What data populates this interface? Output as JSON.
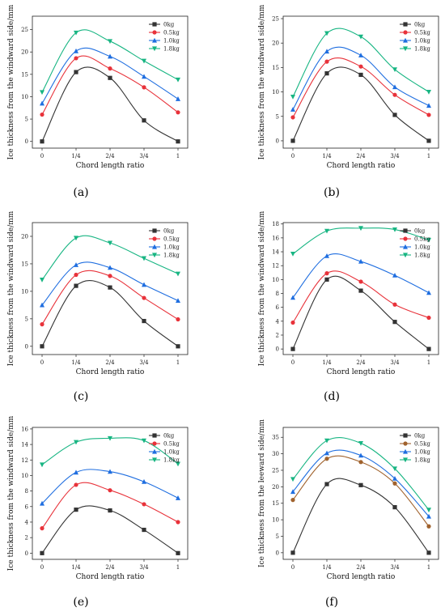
{
  "x_categories": [
    "0",
    "1/4",
    "2/4",
    "3/4",
    "1"
  ],
  "legend_labels": [
    "0kg",
    "0.5kg",
    "1.0kg",
    "1.8kg"
  ],
  "colors": {
    "0kg": "#333333",
    "0.5kg": "#e8323a",
    "1.0kg": "#1f6ee0",
    "1.8kg": "#17b582",
    "0.5kg_panel_f": "#a0622d"
  },
  "chart_data": [
    {
      "type": "line",
      "caption": "(a)",
      "categories": [
        "0",
        "1/4",
        "2/4",
        "3/4",
        "1"
      ],
      "xlabel": "Chord length ratio",
      "ylabel": "Ice thickness from the windward side/mm",
      "ylim": [
        -1.5,
        28
      ],
      "yticks": [
        0,
        5,
        10,
        15,
        20,
        25
      ],
      "series": [
        {
          "name": "0kg",
          "values": [
            0,
            15.5,
            14.2,
            4.7,
            0
          ],
          "marker": "square",
          "color": "#333333"
        },
        {
          "name": "0.5kg",
          "values": [
            6,
            18.6,
            16.3,
            12.1,
            6.5
          ],
          "marker": "circle",
          "color": "#e8323a"
        },
        {
          "name": "1.0kg",
          "values": [
            8.5,
            20.2,
            19.0,
            14.5,
            9.5
          ],
          "marker": "triangle-up",
          "color": "#1f6ee0"
        },
        {
          "name": "1.8kg",
          "values": [
            11,
            24.3,
            22.4,
            18.0,
            13.8
          ],
          "marker": "triangle-down",
          "color": "#17b582"
        }
      ]
    },
    {
      "type": "line",
      "caption": "(b)",
      "categories": [
        "0",
        "1/4",
        "2/4",
        "3/4",
        "1"
      ],
      "xlabel": "Chord length ratio",
      "ylabel": "Ice thickness from the windward side/mm",
      "ylim": [
        -1.5,
        25.5
      ],
      "yticks": [
        0,
        5,
        10,
        15,
        20,
        25
      ],
      "series": [
        {
          "name": "0kg",
          "values": [
            0,
            13.8,
            13.5,
            5.3,
            0
          ],
          "marker": "square",
          "color": "#333333"
        },
        {
          "name": "0.5kg",
          "values": [
            4.8,
            16.2,
            15.2,
            9.4,
            5.3
          ],
          "marker": "circle",
          "color": "#e8323a"
        },
        {
          "name": "1.0kg",
          "values": [
            6.4,
            18.3,
            17.5,
            11.0,
            7.2
          ],
          "marker": "triangle-up",
          "color": "#1f6ee0"
        },
        {
          "name": "1.8kg",
          "values": [
            9.0,
            22.0,
            21.3,
            14.6,
            10.0
          ],
          "marker": "triangle-down",
          "color": "#17b582"
        }
      ]
    },
    {
      "type": "line",
      "caption": "(c)",
      "categories": [
        "0",
        "1/4",
        "2/4",
        "3/4",
        "1"
      ],
      "xlabel": "Chord length ratio",
      "ylabel": "Ice thickness from the windward side/mm",
      "ylim": [
        -1.5,
        22.5
      ],
      "yticks": [
        0,
        5,
        10,
        15,
        20
      ],
      "series": [
        {
          "name": "0kg",
          "values": [
            0,
            11.0,
            10.7,
            4.6,
            0
          ],
          "marker": "square",
          "color": "#333333"
        },
        {
          "name": "0.5kg",
          "values": [
            4.0,
            13.0,
            12.8,
            8.8,
            4.9
          ],
          "marker": "circle",
          "color": "#e8323a"
        },
        {
          "name": "1.0kg",
          "values": [
            7.5,
            14.8,
            14.3,
            11.2,
            8.3
          ],
          "marker": "triangle-up",
          "color": "#1f6ee0"
        },
        {
          "name": "1.8kg",
          "values": [
            12.1,
            19.7,
            18.8,
            16.0,
            13.2
          ],
          "marker": "triangle-down",
          "color": "#17b582"
        }
      ]
    },
    {
      "type": "line",
      "caption": "(d)",
      "categories": [
        "0",
        "1/4",
        "2/4",
        "3/4",
        "1"
      ],
      "xlabel": "Chord length ratio",
      "ylabel": "Ice thickness from the windward side/mm",
      "ylim": [
        -0.8,
        18.2
      ],
      "yticks": [
        0,
        2,
        4,
        6,
        8,
        10,
        12,
        14,
        16,
        18
      ],
      "series": [
        {
          "name": "0kg",
          "values": [
            0,
            10.0,
            8.4,
            3.9,
            0
          ],
          "marker": "square",
          "color": "#333333"
        },
        {
          "name": "0.5kg",
          "values": [
            3.8,
            10.9,
            9.7,
            6.4,
            4.5
          ],
          "marker": "circle",
          "color": "#e8323a"
        },
        {
          "name": "1.0kg",
          "values": [
            7.4,
            13.4,
            12.6,
            10.6,
            8.1
          ],
          "marker": "triangle-up",
          "color": "#1f6ee0"
        },
        {
          "name": "1.8kg",
          "values": [
            13.7,
            17.0,
            17.4,
            17.2,
            15.7
          ],
          "marker": "triangle-down",
          "color": "#17b582"
        }
      ]
    },
    {
      "type": "line",
      "caption": "(e)",
      "categories": [
        "0",
        "1/4",
        "2/4",
        "3/4",
        "1"
      ],
      "xlabel": "Chord length ratio",
      "ylabel": "Ice thickness from the windward side/mm",
      "ylim": [
        -0.8,
        16.2
      ],
      "yticks": [
        0,
        2,
        4,
        6,
        8,
        10,
        12,
        14,
        16
      ],
      "series": [
        {
          "name": "0kg",
          "values": [
            0,
            5.6,
            5.5,
            3.0,
            0
          ],
          "marker": "square",
          "color": "#333333"
        },
        {
          "name": "0.5kg",
          "values": [
            3.2,
            8.8,
            8.1,
            6.3,
            4.0
          ],
          "marker": "circle",
          "color": "#e8323a"
        },
        {
          "name": "1.0kg",
          "values": [
            6.4,
            10.4,
            10.5,
            9.2,
            7.1
          ],
          "marker": "triangle-up",
          "color": "#1f6ee0"
        },
        {
          "name": "1.8kg",
          "values": [
            11.4,
            14.3,
            14.8,
            14.5,
            11.5
          ],
          "marker": "triangle-down",
          "color": "#17b582"
        }
      ]
    },
    {
      "type": "line",
      "caption": "(f)",
      "categories": [
        "0",
        "1/4",
        "2/4",
        "3/4",
        "1"
      ],
      "xlabel": "Chord length ratio",
      "ylabel": "Ice thickness from the leeward side/mm",
      "ylim": [
        -2,
        38
      ],
      "yticks": [
        0,
        5,
        10,
        15,
        20,
        25,
        30,
        35
      ],
      "series": [
        {
          "name": "0kg",
          "values": [
            0,
            20.8,
            20.5,
            13.8,
            0
          ],
          "marker": "square",
          "color": "#333333"
        },
        {
          "name": "0.5kg",
          "values": [
            16.0,
            28.5,
            27.5,
            21.0,
            8.0
          ],
          "marker": "circle",
          "color": "#a0622d"
        },
        {
          "name": "1.0kg",
          "values": [
            18.5,
            30.2,
            29.5,
            22.5,
            11.0
          ],
          "marker": "triangle-up",
          "color": "#1f6ee0"
        },
        {
          "name": "1.8kg",
          "values": [
            22.3,
            34.0,
            33.2,
            25.5,
            13.0
          ],
          "marker": "triangle-down",
          "color": "#17b582"
        }
      ]
    }
  ]
}
